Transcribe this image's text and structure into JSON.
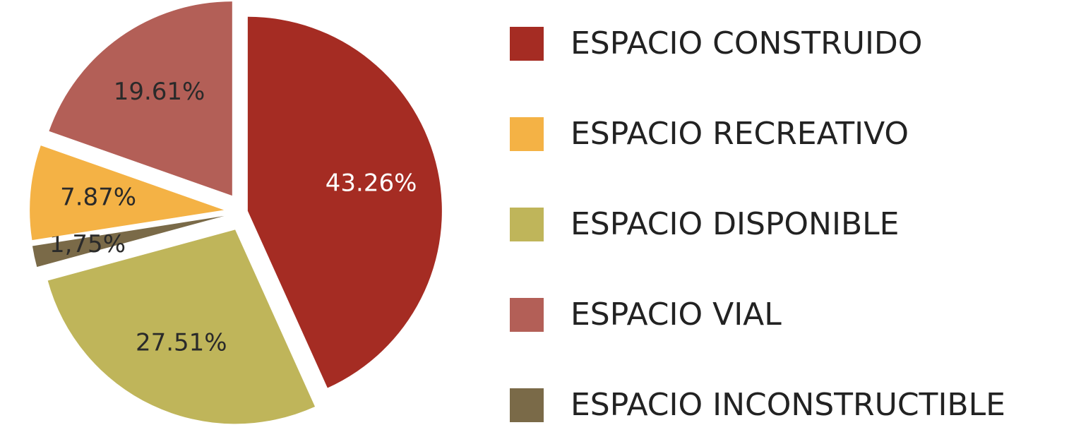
{
  "chart_data": {
    "type": "pie",
    "categories": [
      "ESPACIO CONSTRUIDO",
      "ESPACIO DISPONIBLE",
      "ESPACIO INCONSTRUCTIBLE",
      "ESPACIO RECREATIVO",
      "ESPACIO VIAL"
    ],
    "values": [
      43.26,
      27.51,
      1.75,
      7.87,
      19.61
    ],
    "value_labels": [
      "43.26%",
      "27.51%",
      "1,75%",
      "7.87%",
      "19.61%"
    ],
    "colors": [
      "#a52c23",
      "#bfb55a",
      "#7a6a48",
      "#f4b245",
      "#b35f57"
    ],
    "legend": "right"
  }
}
